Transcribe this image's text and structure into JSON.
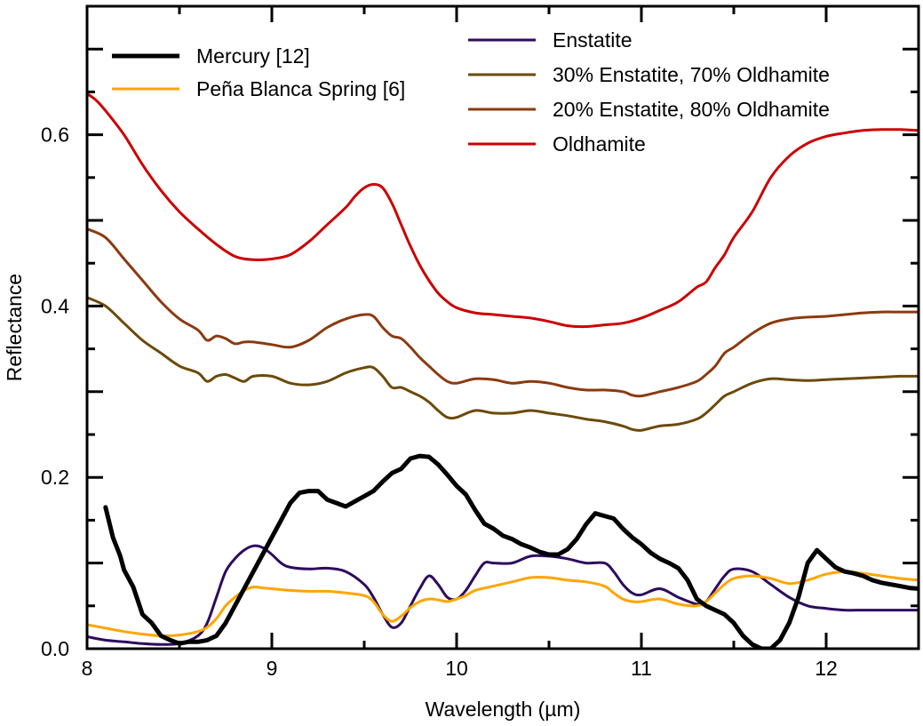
{
  "chart_data": {
    "type": "line",
    "xlabel": "Wavelength (µm)",
    "ylabel": "Reflectance",
    "xlim": [
      8,
      12.5
    ],
    "ylim": [
      0,
      0.75
    ],
    "x_ticks": [
      8,
      9,
      10,
      11,
      12
    ],
    "x_tick_labels": [
      "8",
      "9",
      "10",
      "11",
      "12"
    ],
    "y_ticks": [
      0.0,
      0.2,
      0.4,
      0.6
    ],
    "y_tick_labels": [
      "0.0",
      "0.2",
      "0.4",
      "0.6"
    ],
    "grid": false,
    "legend_placement": "top",
    "series": [
      {
        "name": "Mercury [12]",
        "color": "#000000",
        "x": [
          8.1,
          8.14,
          8.18,
          8.2,
          8.25,
          8.3,
          8.35,
          8.4,
          8.45,
          8.5,
          8.55,
          8.6,
          8.65,
          8.7,
          8.75,
          8.8,
          8.85,
          8.9,
          8.95,
          9.0,
          9.05,
          9.1,
          9.15,
          9.2,
          9.25,
          9.3,
          9.35,
          9.4,
          9.45,
          9.5,
          9.55,
          9.6,
          9.65,
          9.7,
          9.75,
          9.8,
          9.85,
          9.9,
          9.95,
          10.0,
          10.05,
          10.1,
          10.15,
          10.2,
          10.25,
          10.3,
          10.35,
          10.4,
          10.45,
          10.5,
          10.55,
          10.6,
          10.65,
          10.7,
          10.75,
          10.8,
          10.85,
          10.9,
          10.95,
          11.0,
          11.05,
          11.1,
          11.15,
          11.2,
          11.25,
          11.3,
          11.35,
          11.4,
          11.45,
          11.5,
          11.55,
          11.6,
          11.65,
          11.7,
          11.75,
          11.8,
          11.85,
          11.9,
          11.95,
          12.0,
          12.05,
          12.1,
          12.15,
          12.2,
          12.25,
          12.3,
          12.35,
          12.4,
          12.45,
          12.5
        ],
        "values": [
          0.165,
          0.13,
          0.108,
          0.092,
          0.072,
          0.04,
          0.03,
          0.015,
          0.01,
          0.006,
          0.008,
          0.008,
          0.01,
          0.015,
          0.03,
          0.05,
          0.07,
          0.09,
          0.11,
          0.13,
          0.15,
          0.17,
          0.182,
          0.184,
          0.184,
          0.174,
          0.17,
          0.166,
          0.172,
          0.178,
          0.184,
          0.195,
          0.205,
          0.21,
          0.222,
          0.225,
          0.224,
          0.215,
          0.203,
          0.19,
          0.18,
          0.162,
          0.146,
          0.14,
          0.132,
          0.128,
          0.122,
          0.118,
          0.113,
          0.11,
          0.11,
          0.116,
          0.128,
          0.145,
          0.158,
          0.155,
          0.152,
          0.14,
          0.13,
          0.122,
          0.112,
          0.105,
          0.1,
          0.094,
          0.08,
          0.058,
          0.05,
          0.045,
          0.04,
          0.03,
          0.015,
          0.005,
          0.0,
          0.0,
          0.01,
          0.03,
          0.06,
          0.1,
          0.115,
          0.105,
          0.095,
          0.09,
          0.088,
          0.085,
          0.08,
          0.077,
          0.075,
          0.073,
          0.071,
          0.07
        ]
      },
      {
        "name": "Peña Blanca Spring [6]",
        "color": "#ffa500",
        "x": [
          8.0,
          8.1,
          8.2,
          8.3,
          8.4,
          8.5,
          8.6,
          8.65,
          8.7,
          8.75,
          8.8,
          8.85,
          8.9,
          8.95,
          9.0,
          9.1,
          9.2,
          9.3,
          9.4,
          9.5,
          9.55,
          9.6,
          9.65,
          9.7,
          9.75,
          9.8,
          9.85,
          9.9,
          9.95,
          10.0,
          10.05,
          10.1,
          10.2,
          10.3,
          10.4,
          10.5,
          10.6,
          10.7,
          10.8,
          10.85,
          10.9,
          10.95,
          11.0,
          11.1,
          11.2,
          11.3,
          11.35,
          11.4,
          11.45,
          11.5,
          11.6,
          11.7,
          11.8,
          11.9,
          12.0,
          12.1,
          12.2,
          12.3,
          12.4,
          12.5
        ],
        "values": [
          0.028,
          0.024,
          0.02,
          0.017,
          0.015,
          0.016,
          0.02,
          0.025,
          0.035,
          0.05,
          0.06,
          0.068,
          0.072,
          0.071,
          0.07,
          0.068,
          0.067,
          0.067,
          0.065,
          0.062,
          0.055,
          0.04,
          0.032,
          0.038,
          0.048,
          0.055,
          0.058,
          0.057,
          0.055,
          0.058,
          0.062,
          0.068,
          0.073,
          0.078,
          0.083,
          0.083,
          0.08,
          0.078,
          0.073,
          0.065,
          0.058,
          0.055,
          0.055,
          0.058,
          0.052,
          0.05,
          0.055,
          0.065,
          0.075,
          0.082,
          0.085,
          0.082,
          0.076,
          0.08,
          0.087,
          0.09,
          0.088,
          0.085,
          0.082,
          0.08
        ]
      },
      {
        "name": "Enstatite",
        "color": "#2e0a5e",
        "x": [
          8.0,
          8.1,
          8.2,
          8.3,
          8.4,
          8.5,
          8.6,
          8.65,
          8.7,
          8.75,
          8.8,
          8.85,
          8.9,
          8.95,
          9.0,
          9.05,
          9.1,
          9.2,
          9.3,
          9.4,
          9.5,
          9.55,
          9.6,
          9.65,
          9.7,
          9.75,
          9.8,
          9.85,
          9.9,
          9.95,
          10.0,
          10.05,
          10.1,
          10.15,
          10.2,
          10.3,
          10.4,
          10.5,
          10.6,
          10.7,
          10.8,
          10.85,
          10.9,
          10.95,
          11.0,
          11.1,
          11.2,
          11.3,
          11.35,
          11.4,
          11.45,
          11.5,
          11.6,
          11.7,
          11.8,
          11.9,
          12.0,
          12.1,
          12.2,
          12.3,
          12.4,
          12.5
        ],
        "values": [
          0.014,
          0.01,
          0.008,
          0.006,
          0.005,
          0.006,
          0.015,
          0.03,
          0.06,
          0.09,
          0.105,
          0.115,
          0.12,
          0.118,
          0.11,
          0.1,
          0.095,
          0.093,
          0.094,
          0.09,
          0.075,
          0.06,
          0.04,
          0.025,
          0.03,
          0.05,
          0.07,
          0.085,
          0.075,
          0.06,
          0.058,
          0.068,
          0.085,
          0.1,
          0.1,
          0.1,
          0.108,
          0.108,
          0.105,
          0.1,
          0.1,
          0.09,
          0.075,
          0.065,
          0.063,
          0.07,
          0.06,
          0.052,
          0.055,
          0.07,
          0.085,
          0.093,
          0.09,
          0.075,
          0.06,
          0.05,
          0.047,
          0.045,
          0.045,
          0.045,
          0.045,
          0.045
        ]
      },
      {
        "name": "30% Enstatite, 70% Oldhamite",
        "color": "#6b4a0a",
        "x": [
          8.0,
          8.1,
          8.2,
          8.3,
          8.4,
          8.5,
          8.6,
          8.65,
          8.7,
          8.75,
          8.8,
          8.85,
          8.9,
          9.0,
          9.1,
          9.2,
          9.3,
          9.4,
          9.5,
          9.55,
          9.6,
          9.65,
          9.7,
          9.75,
          9.8,
          9.85,
          9.9,
          9.95,
          10.0,
          10.1,
          10.2,
          10.3,
          10.4,
          10.5,
          10.6,
          10.7,
          10.8,
          10.9,
          10.95,
          11.0,
          11.1,
          11.2,
          11.3,
          11.35,
          11.4,
          11.45,
          11.5,
          11.6,
          11.7,
          11.8,
          11.9,
          12.0,
          12.1,
          12.2,
          12.3,
          12.4,
          12.5
        ],
        "values": [
          0.41,
          0.4,
          0.38,
          0.36,
          0.345,
          0.33,
          0.322,
          0.312,
          0.318,
          0.32,
          0.316,
          0.312,
          0.318,
          0.318,
          0.31,
          0.308,
          0.312,
          0.322,
          0.328,
          0.328,
          0.318,
          0.305,
          0.305,
          0.3,
          0.295,
          0.288,
          0.278,
          0.27,
          0.27,
          0.278,
          0.275,
          0.275,
          0.278,
          0.275,
          0.272,
          0.268,
          0.265,
          0.26,
          0.256,
          0.255,
          0.26,
          0.262,
          0.268,
          0.275,
          0.285,
          0.295,
          0.3,
          0.31,
          0.315,
          0.314,
          0.313,
          0.314,
          0.315,
          0.316,
          0.317,
          0.318,
          0.318
        ]
      },
      {
        "name": "20% Enstatite, 80% Oldhamite",
        "color": "#8b3a10",
        "x": [
          8.0,
          8.1,
          8.2,
          8.3,
          8.4,
          8.5,
          8.6,
          8.65,
          8.7,
          8.75,
          8.8,
          8.85,
          8.9,
          9.0,
          9.1,
          9.2,
          9.3,
          9.4,
          9.5,
          9.55,
          9.6,
          9.65,
          9.7,
          9.75,
          9.8,
          9.85,
          9.9,
          9.95,
          10.0,
          10.1,
          10.2,
          10.3,
          10.4,
          10.5,
          10.6,
          10.7,
          10.8,
          10.9,
          10.95,
          11.0,
          11.1,
          11.2,
          11.3,
          11.35,
          11.4,
          11.45,
          11.5,
          11.6,
          11.7,
          11.8,
          11.9,
          12.0,
          12.1,
          12.2,
          12.3,
          12.4,
          12.5
        ],
        "values": [
          0.49,
          0.48,
          0.455,
          0.43,
          0.405,
          0.385,
          0.372,
          0.36,
          0.365,
          0.362,
          0.356,
          0.358,
          0.358,
          0.355,
          0.352,
          0.36,
          0.375,
          0.385,
          0.39,
          0.388,
          0.375,
          0.365,
          0.362,
          0.352,
          0.34,
          0.33,
          0.32,
          0.312,
          0.31,
          0.315,
          0.314,
          0.31,
          0.312,
          0.31,
          0.305,
          0.302,
          0.302,
          0.3,
          0.296,
          0.295,
          0.3,
          0.305,
          0.312,
          0.32,
          0.33,
          0.345,
          0.352,
          0.368,
          0.38,
          0.385,
          0.387,
          0.388,
          0.39,
          0.392,
          0.393,
          0.393,
          0.393
        ]
      },
      {
        "name": "Oldhamite",
        "color": "#cc0000",
        "x": [
          8.0,
          8.05,
          8.1,
          8.2,
          8.3,
          8.4,
          8.5,
          8.6,
          8.7,
          8.8,
          8.9,
          9.0,
          9.1,
          9.2,
          9.3,
          9.4,
          9.45,
          9.5,
          9.55,
          9.6,
          9.65,
          9.7,
          9.75,
          9.8,
          9.85,
          9.9,
          9.95,
          10.0,
          10.1,
          10.2,
          10.3,
          10.4,
          10.5,
          10.6,
          10.7,
          10.8,
          10.9,
          11.0,
          11.1,
          11.2,
          11.3,
          11.35,
          11.4,
          11.45,
          11.5,
          11.6,
          11.7,
          11.8,
          11.9,
          12.0,
          12.1,
          12.2,
          12.3,
          12.4,
          12.5
        ],
        "values": [
          0.648,
          0.64,
          0.628,
          0.6,
          0.565,
          0.535,
          0.51,
          0.49,
          0.472,
          0.458,
          0.454,
          0.455,
          0.46,
          0.475,
          0.495,
          0.515,
          0.528,
          0.538,
          0.542,
          0.538,
          0.52,
          0.495,
          0.47,
          0.448,
          0.43,
          0.415,
          0.405,
          0.398,
          0.392,
          0.39,
          0.388,
          0.386,
          0.382,
          0.377,
          0.376,
          0.378,
          0.38,
          0.386,
          0.395,
          0.405,
          0.422,
          0.428,
          0.445,
          0.46,
          0.48,
          0.51,
          0.55,
          0.575,
          0.59,
          0.598,
          0.602,
          0.605,
          0.606,
          0.606,
          0.605
        ]
      }
    ],
    "legend": {
      "left_column": [
        "Mercury [12]",
        "Peña Blanca Spring [6]"
      ],
      "right_column": [
        "Enstatite",
        "30% Enstatite, 70% Oldhamite",
        "20% Enstatite, 80% Oldhamite",
        "Oldhamite"
      ]
    }
  }
}
